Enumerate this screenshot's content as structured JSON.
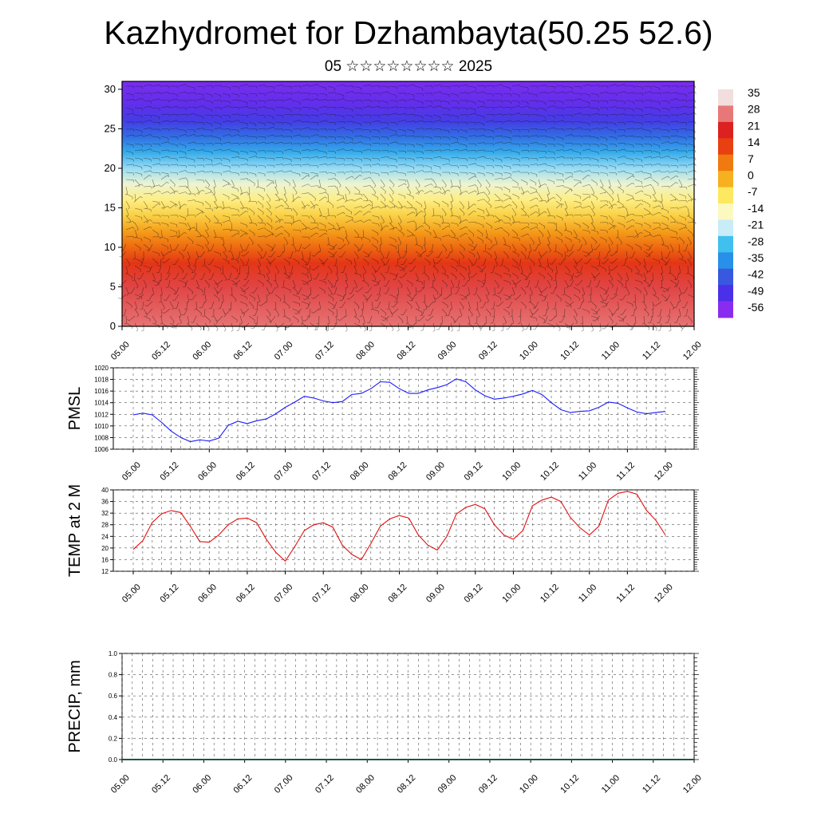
{
  "title": "Kazhydromet for Dzhambayta(50.25 52.6)",
  "subtitle": "05 ☆☆☆☆☆☆☆☆ 2025",
  "chart_data": [
    {
      "type": "heatmap",
      "title": "",
      "xlabel": "",
      "ylabel": "",
      "x_tick_labels": [
        "05.00",
        "05.12",
        "06.00",
        "06.12",
        "07.00",
        "07.12",
        "08.00",
        "08.12",
        "09.00",
        "09.12",
        "10.00",
        "10.12",
        "11.00",
        "11.12",
        "12.00"
      ],
      "y_ticks": [
        0,
        5,
        10,
        15,
        20,
        25,
        30
      ],
      "ylim": [
        0,
        31
      ],
      "colorbar_labels": [
        "35",
        "28",
        "21",
        "14",
        "7",
        "0",
        "-7",
        "-14",
        "-21",
        "-28",
        "-35",
        "-42",
        "-49",
        "-56"
      ],
      "colorbar_colors": [
        "#f2dede",
        "#e87878",
        "#dd2020",
        "#e84010",
        "#f07a10",
        "#f7b020",
        "#fde860",
        "#fdf8c0",
        "#c8ecf8",
        "#40c0ee",
        "#2890e8",
        "#3858e0",
        "#4a30e8",
        "#8a2cf0"
      ],
      "overlay": "wind barbs",
      "temperature_by_height": [
        {
          "height": 0,
          "value": 30
        },
        {
          "height": 5,
          "value": 26
        },
        {
          "height": 8,
          "value": 18
        },
        {
          "height": 10,
          "value": 10
        },
        {
          "height": 12,
          "value": 3
        },
        {
          "height": 14,
          "value": -4
        },
        {
          "height": 16,
          "value": -10
        },
        {
          "height": 18,
          "value": -17
        },
        {
          "height": 20,
          "value": -25
        },
        {
          "height": 22,
          "value": -33
        },
        {
          "height": 24,
          "value": -42
        },
        {
          "height": 26,
          "value": -50
        },
        {
          "height": 28,
          "value": -55
        },
        {
          "height": 31,
          "value": -58
        }
      ]
    },
    {
      "type": "line",
      "ylabel": "PMSL",
      "ylim": [
        1006,
        1020
      ],
      "y_ticks": [
        1006,
        1008,
        1010,
        1012,
        1014,
        1016,
        1018,
        1020
      ],
      "x_tick_labels": [
        "05.00",
        "05.12",
        "06.00",
        "06.12",
        "07.00",
        "07.12",
        "08.00",
        "08.12",
        "09.00",
        "09.12",
        "10.00",
        "10.12",
        "11.00",
        "11.12",
        "12.00"
      ],
      "x": [
        0,
        3,
        6,
        9,
        12,
        15,
        18,
        21,
        24,
        27,
        30,
        33,
        36,
        39,
        42,
        45,
        48,
        51,
        54,
        57,
        60,
        63,
        66,
        69,
        72,
        75,
        78,
        81,
        84,
        87,
        90,
        93,
        96,
        99,
        102,
        105,
        108,
        111,
        114,
        117,
        120,
        123,
        126,
        129,
        132,
        135,
        138,
        141,
        144,
        147,
        150,
        153,
        156,
        159,
        162,
        165,
        168
      ],
      "series": [
        {
          "color": "#1a1aff",
          "values": [
            1011.9,
            1012.2,
            1011.9,
            1010.6,
            1009.1,
            1008.0,
            1007.3,
            1007.6,
            1007.4,
            1007.9,
            1010.1,
            1010.8,
            1010.4,
            1010.9,
            1011.2,
            1012.1,
            1013.2,
            1014.1,
            1015.1,
            1014.8,
            1014.3,
            1014.0,
            1014.2,
            1015.4,
            1015.6,
            1016.4,
            1017.6,
            1017.5,
            1016.4,
            1015.6,
            1015.6,
            1016.2,
            1016.6,
            1017.1,
            1018.1,
            1017.6,
            1016.2,
            1015.2,
            1014.6,
            1014.8,
            1015.1,
            1015.5,
            1016.1,
            1015.4,
            1014.0,
            1012.8,
            1012.3,
            1012.5,
            1012.6,
            1013.2,
            1014.1,
            1013.9,
            1013.1,
            1012.4,
            1012.1,
            1012.3,
            1012.5
          ]
        }
      ]
    },
    {
      "type": "line",
      "ylabel": "TEMP at 2 M",
      "ylim": [
        12,
        40
      ],
      "y_ticks": [
        12,
        16,
        20,
        24,
        28,
        32,
        36,
        40
      ],
      "x_tick_labels": [
        "05.00",
        "05.12",
        "06.00",
        "06.12",
        "07.00",
        "07.12",
        "08.00",
        "08.12",
        "09.00",
        "09.12",
        "10.00",
        "10.12",
        "11.00",
        "11.12",
        "12.00"
      ],
      "x": [
        0,
        3,
        6,
        9,
        12,
        15,
        18,
        21,
        24,
        27,
        30,
        33,
        36,
        39,
        42,
        45,
        48,
        51,
        54,
        57,
        60,
        63,
        66,
        69,
        72,
        75,
        78,
        81,
        84,
        87,
        90,
        93,
        96,
        99,
        102,
        105,
        108,
        111,
        114,
        117,
        120,
        123,
        126,
        129,
        132,
        135,
        138,
        141,
        144,
        147,
        150,
        153,
        156,
        159,
        162,
        165,
        168
      ],
      "series": [
        {
          "color": "#e01010",
          "values": [
            19.5,
            22.5,
            28.8,
            31.8,
            32.9,
            32.2,
            27.5,
            22.2,
            22.0,
            24.5,
            28.0,
            30.0,
            30.3,
            28.7,
            23.0,
            18.5,
            15.5,
            20.5,
            26.0,
            28.0,
            28.7,
            27.2,
            21.0,
            17.8,
            16.0,
            21.5,
            27.5,
            30.0,
            31.2,
            30.3,
            24.5,
            21.0,
            19.3,
            24.0,
            31.7,
            34.0,
            35.0,
            33.5,
            28.0,
            24.5,
            23.0,
            26.0,
            34.5,
            36.5,
            37.5,
            36.0,
            30.5,
            27.0,
            24.5,
            27.5,
            36.5,
            38.8,
            39.5,
            38.5,
            33.0,
            29.5,
            24.5
          ]
        }
      ]
    },
    {
      "type": "bar",
      "ylabel": "PRECIP, mm",
      "ylim": [
        0,
        1
      ],
      "y_ticks": [
        "0.0",
        "0.2",
        "0.4",
        "0.6",
        "0.8",
        "1.0"
      ],
      "x_tick_labels": [
        "05.00",
        "05.12",
        "06.00",
        "06.12",
        "07.00",
        "07.12",
        "08.00",
        "08.12",
        "09.00",
        "09.12",
        "10.00",
        "10.12",
        "11.00",
        "11.12",
        "12.00"
      ],
      "values": [
        0,
        0,
        0,
        0,
        0,
        0,
        0,
        0,
        0,
        0,
        0,
        0,
        0,
        0,
        0,
        0,
        0,
        0,
        0,
        0,
        0,
        0,
        0,
        0,
        0,
        0,
        0,
        0,
        0,
        0,
        0,
        0,
        0,
        0,
        0,
        0,
        0,
        0,
        0,
        0,
        0,
        0,
        0,
        0,
        0,
        0,
        0,
        0,
        0,
        0,
        0,
        0,
        0,
        0,
        0,
        0,
        0
      ]
    }
  ]
}
